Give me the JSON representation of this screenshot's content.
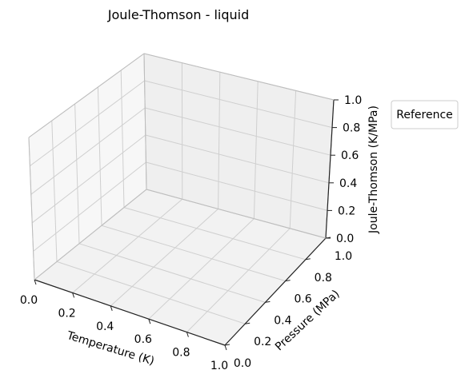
{
  "chart_data": {
    "type": "scatter",
    "projection": "3d",
    "title": "Joule-Thomson - liquid",
    "xlabel": "Temperature (K)",
    "ylabel": "Pressure (MPa)",
    "zlabel": "Joule-Thomson (K/MPa)",
    "xlim": [
      0.0,
      1.0
    ],
    "ylim": [
      0.0,
      1.0
    ],
    "zlim": [
      0.0,
      1.0
    ],
    "x_ticks": [
      "0.0",
      "0.2",
      "0.4",
      "0.6",
      "0.8",
      "1.0"
    ],
    "y_ticks": [
      "0.0",
      "0.2",
      "0.4",
      "0.6",
      "0.8",
      "1.0"
    ],
    "z_ticks": [
      "0.0",
      "0.2",
      "0.4",
      "0.6",
      "0.8",
      "1.0"
    ],
    "grid": true,
    "series": [],
    "legend": {
      "title": "Reference",
      "placement": "outside-right",
      "entries": []
    }
  }
}
